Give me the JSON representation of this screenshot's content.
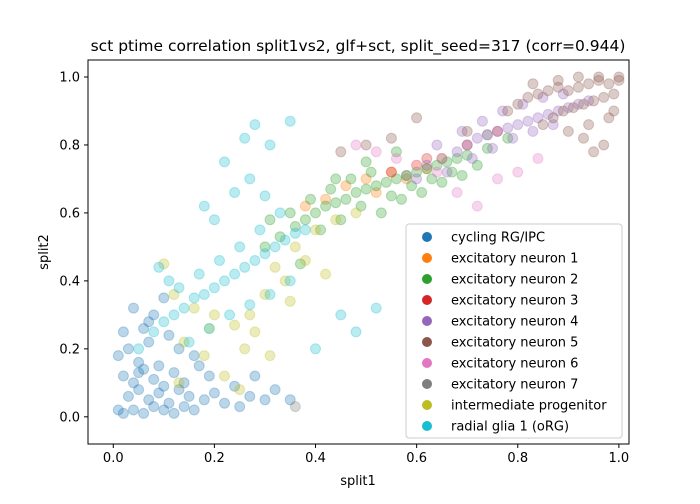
{
  "chart_data": {
    "type": "scatter",
    "title": "sct ptime correlation split1vs2, glf+sct, split_seed=317 (corr=0.944)",
    "xlabel": "split1",
    "ylabel": "split2",
    "xlim": [
      -0.05,
      1.02
    ],
    "ylim": [
      -0.08,
      1.05
    ],
    "xticks": [
      "0.0",
      "0.2",
      "0.4",
      "0.6",
      "0.8",
      "1.0"
    ],
    "yticks": [
      "0.0",
      "0.2",
      "0.4",
      "0.6",
      "0.8",
      "1.0"
    ],
    "grid": false,
    "legend_position": "lower-right",
    "point_alpha": 0.3,
    "series": [
      {
        "name": "cycling RG/IPC",
        "color": "#1f77b4",
        "x": [
          0.02,
          0.04,
          0.06,
          0.08,
          0.1,
          0.12,
          0.03,
          0.05,
          0.07,
          0.09,
          0.11,
          0.14,
          0.16,
          0.02,
          0.04,
          0.06,
          0.08,
          0.1,
          0.13,
          0.15,
          0.18,
          0.01,
          0.03,
          0.05,
          0.07,
          0.09,
          0.12,
          0.2,
          0.22,
          0.25,
          0.27,
          0.3,
          0.06,
          0.08,
          0.11,
          0.13,
          0.16,
          0.19,
          0.04,
          0.07,
          0.1,
          0.02,
          0.14,
          0.17,
          0.24,
          0.28,
          0.32,
          0.35,
          0.01,
          0.05
        ],
        "y": [
          0.01,
          0.02,
          0.01,
          0.03,
          0.02,
          0.01,
          0.06,
          0.08,
          0.05,
          0.07,
          0.04,
          0.03,
          0.02,
          0.12,
          0.1,
          0.14,
          0.11,
          0.09,
          0.08,
          0.06,
          0.05,
          0.18,
          0.2,
          0.16,
          0.22,
          0.15,
          0.13,
          0.07,
          0.04,
          0.03,
          0.06,
          0.05,
          0.26,
          0.3,
          0.24,
          0.2,
          0.18,
          0.12,
          0.32,
          0.28,
          0.35,
          0.25,
          0.1,
          0.15,
          0.09,
          0.12,
          0.08,
          0.05,
          0.02,
          0.13
        ]
      },
      {
        "name": "excitatory neuron 1",
        "color": "#ff7f0e",
        "x": [
          0.38,
          0.42,
          0.46,
          0.5,
          0.55,
          0.6,
          0.65,
          0.52,
          0.58,
          0.62
        ],
        "y": [
          0.62,
          0.64,
          0.68,
          0.7,
          0.72,
          0.74,
          0.76,
          0.66,
          0.7,
          0.73
        ]
      },
      {
        "name": "excitatory neuron 2",
        "color": "#2ca02c",
        "x": [
          0.3,
          0.33,
          0.36,
          0.38,
          0.4,
          0.42,
          0.44,
          0.46,
          0.48,
          0.5,
          0.52,
          0.54,
          0.56,
          0.58,
          0.6,
          0.62,
          0.64,
          0.66,
          0.68,
          0.7,
          0.35,
          0.39,
          0.43,
          0.47,
          0.51,
          0.55,
          0.59,
          0.63,
          0.67,
          0.72,
          0.41,
          0.45,
          0.49,
          0.53,
          0.57,
          0.61,
          0.65,
          0.69,
          0.74,
          0.78,
          0.44,
          0.5,
          0.56,
          0.37,
          0.31
        ],
        "y": [
          0.5,
          0.53,
          0.56,
          0.58,
          0.6,
          0.62,
          0.63,
          0.64,
          0.66,
          0.67,
          0.68,
          0.69,
          0.7,
          0.71,
          0.72,
          0.73,
          0.74,
          0.75,
          0.76,
          0.77,
          0.6,
          0.64,
          0.67,
          0.7,
          0.72,
          0.65,
          0.68,
          0.7,
          0.72,
          0.74,
          0.55,
          0.58,
          0.62,
          0.6,
          0.64,
          0.66,
          0.69,
          0.71,
          0.79,
          0.82,
          0.7,
          0.75,
          0.78,
          0.45,
          0.58
        ]
      },
      {
        "name": "excitatory neuron 3",
        "color": "#d62728",
        "x": [
          0.55,
          0.62,
          0.7,
          0.76
        ],
        "y": [
          0.72,
          0.76,
          0.8,
          0.84
        ]
      },
      {
        "name": "excitatory neuron 4",
        "color": "#9467bd",
        "x": [
          0.62,
          0.65,
          0.68,
          0.7,
          0.72,
          0.74,
          0.76,
          0.78,
          0.8,
          0.82,
          0.84,
          0.86,
          0.88,
          0.9,
          0.66,
          0.71,
          0.75,
          0.79,
          0.83,
          0.87,
          0.69,
          0.73,
          0.77,
          0.81,
          0.85,
          0.89,
          0.64,
          0.92,
          0.94,
          0.6
        ],
        "y": [
          0.74,
          0.76,
          0.78,
          0.8,
          0.82,
          0.83,
          0.84,
          0.85,
          0.86,
          0.87,
          0.88,
          0.89,
          0.9,
          0.91,
          0.72,
          0.76,
          0.79,
          0.82,
          0.84,
          0.86,
          0.84,
          0.87,
          0.9,
          0.92,
          0.94,
          0.95,
          0.8,
          0.92,
          0.93,
          0.7
        ]
      },
      {
        "name": "excitatory neuron 5",
        "color": "#8c564b",
        "x": [
          0.78,
          0.8,
          0.82,
          0.84,
          0.86,
          0.88,
          0.9,
          0.92,
          0.94,
          0.96,
          0.98,
          1.0,
          0.85,
          0.87,
          0.89,
          0.91,
          0.93,
          0.95,
          0.97,
          0.99,
          0.83,
          0.88,
          0.92,
          0.96,
          1.0,
          0.9,
          0.94,
          0.98,
          0.95,
          0.97,
          0.93,
          0.99,
          0.45,
          0.5,
          0.55,
          0.6,
          0.7
        ],
        "y": [
          0.9,
          0.92,
          0.94,
          0.95,
          0.96,
          0.97,
          0.96,
          0.97,
          0.98,
          0.99,
          0.98,
          0.99,
          0.86,
          0.88,
          0.9,
          0.91,
          0.92,
          0.93,
          0.94,
          0.95,
          0.98,
          0.99,
          1.0,
          1.0,
          1.0,
          0.84,
          0.86,
          0.88,
          0.78,
          0.8,
          0.82,
          0.9,
          0.78,
          0.8,
          0.82,
          0.88,
          0.84
        ]
      },
      {
        "name": "excitatory neuron 6",
        "color": "#e377c2",
        "x": [
          0.48,
          0.52,
          0.56,
          0.6,
          0.64,
          0.68,
          0.72,
          0.76,
          0.8,
          0.84
        ],
        "y": [
          0.8,
          0.78,
          0.76,
          0.74,
          0.72,
          0.66,
          0.62,
          0.7,
          0.72,
          0.76
        ]
      },
      {
        "name": "excitatory neuron 7",
        "color": "#7f7f7f",
        "x": [
          0.36,
          0.58,
          0.74
        ],
        "y": [
          0.03,
          0.71,
          0.83
        ]
      },
      {
        "name": "intermediate progenitor",
        "color": "#bcbd22",
        "x": [
          0.12,
          0.16,
          0.2,
          0.24,
          0.28,
          0.32,
          0.36,
          0.4,
          0.44,
          0.48,
          0.22,
          0.26,
          0.3,
          0.34,
          0.38,
          0.18,
          0.1,
          0.14,
          0.42,
          0.27,
          0.31,
          0.35,
          0.13,
          0.19,
          0.25
        ],
        "y": [
          0.36,
          0.32,
          0.3,
          0.27,
          0.25,
          0.44,
          0.5,
          0.55,
          0.58,
          0.6,
          0.12,
          0.2,
          0.36,
          0.4,
          0.46,
          0.18,
          0.45,
          0.22,
          0.42,
          0.3,
          0.18,
          0.34,
          0.1,
          0.26,
          0.08
        ]
      },
      {
        "name": "radial glia 1 (oRG)",
        "color": "#17becf",
        "x": [
          0.05,
          0.08,
          0.1,
          0.12,
          0.14,
          0.16,
          0.18,
          0.2,
          0.22,
          0.24,
          0.26,
          0.28,
          0.3,
          0.32,
          0.34,
          0.36,
          0.38,
          0.15,
          0.19,
          0.23,
          0.27,
          0.31,
          0.35,
          0.13,
          0.17,
          0.21,
          0.25,
          0.29,
          0.33,
          0.22,
          0.26,
          0.28,
          0.31,
          0.18,
          0.2,
          0.24,
          0.4,
          0.45,
          0.48,
          0.52,
          0.27,
          0.09,
          0.11,
          0.3,
          0.35
        ],
        "y": [
          0.2,
          0.25,
          0.28,
          0.3,
          0.32,
          0.35,
          0.36,
          0.38,
          0.4,
          0.42,
          0.44,
          0.46,
          0.48,
          0.5,
          0.52,
          0.54,
          0.55,
          0.22,
          0.26,
          0.3,
          0.33,
          0.36,
          0.4,
          0.38,
          0.42,
          0.46,
          0.5,
          0.55,
          0.6,
          0.75,
          0.82,
          0.86,
          0.8,
          0.62,
          0.58,
          0.66,
          0.2,
          0.3,
          0.25,
          0.32,
          0.7,
          0.44,
          0.4,
          0.65,
          0.87
        ]
      }
    ]
  }
}
